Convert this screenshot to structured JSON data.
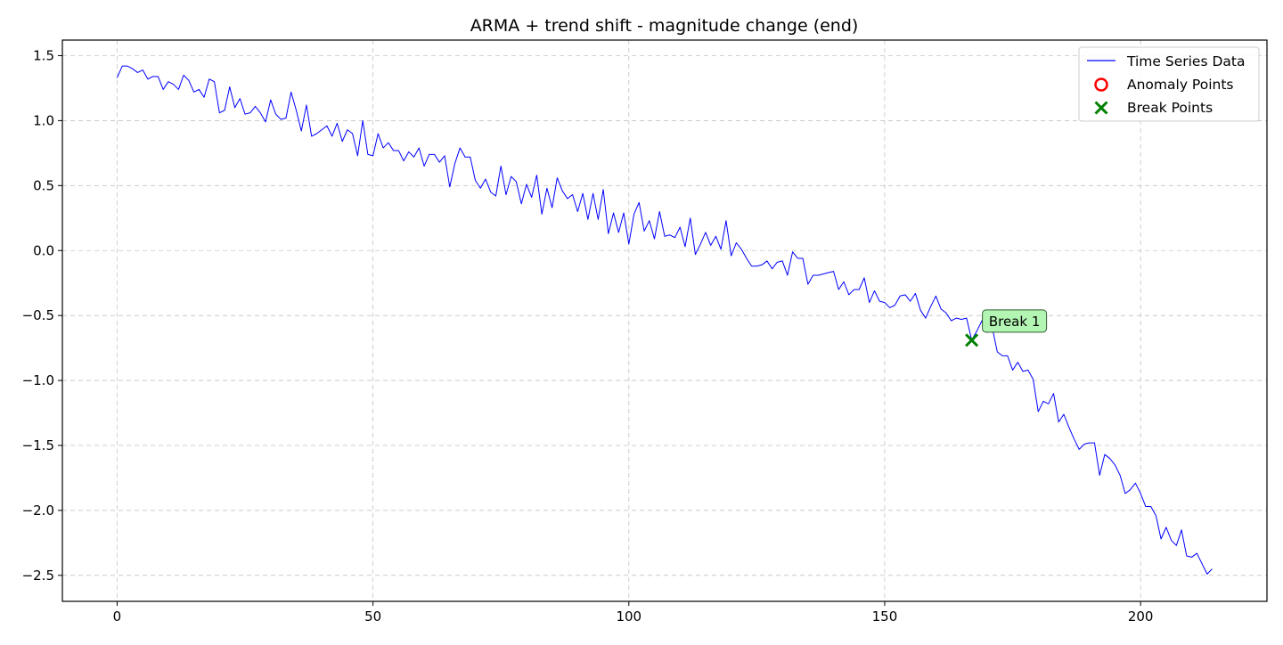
{
  "chart_data": {
    "type": "line",
    "title": "ARMA + trend shift - magnitude change (end)",
    "xlabel": "",
    "ylabel": "",
    "xlim": [
      -10.7,
      224.7
    ],
    "ylim": [
      -2.7,
      1.62
    ],
    "grid": true,
    "legend_position": "top-right",
    "x_ticks": [
      0,
      50,
      100,
      150,
      200
    ],
    "y_ticks": [
      -2.5,
      -2.0,
      -1.5,
      -1.0,
      -0.5,
      0.0,
      0.5,
      1.0,
      1.5
    ],
    "x_tick_labels": [
      "0",
      "50",
      "100",
      "150",
      "200"
    ],
    "y_tick_labels": [
      "−2.5",
      "−2.0",
      "−1.5",
      "−1.0",
      "−0.5",
      "0.0",
      "0.5",
      "1.0",
      "1.5"
    ],
    "series": [
      {
        "name": "Time Series Data",
        "color": "#0000ff",
        "x_start": 0,
        "values": [
          1.33,
          1.42,
          1.42,
          1.4,
          1.37,
          1.39,
          1.32,
          1.34,
          1.34,
          1.24,
          1.3,
          1.28,
          1.24,
          1.35,
          1.31,
          1.22,
          1.24,
          1.18,
          1.32,
          1.3,
          1.06,
          1.08,
          1.26,
          1.1,
          1.17,
          1.05,
          1.06,
          1.11,
          1.06,
          0.99,
          1.16,
          1.05,
          1.01,
          1.02,
          1.22,
          1.08,
          0.92,
          1.12,
          0.88,
          0.9,
          0.93,
          0.96,
          0.88,
          0.98,
          0.84,
          0.93,
          0.9,
          0.73,
          1.0,
          0.74,
          0.73,
          0.9,
          0.79,
          0.83,
          0.77,
          0.77,
          0.69,
          0.76,
          0.72,
          0.79,
          0.65,
          0.74,
          0.74,
          0.68,
          0.73,
          0.49,
          0.67,
          0.79,
          0.72,
          0.72,
          0.54,
          0.48,
          0.55,
          0.45,
          0.42,
          0.65,
          0.43,
          0.57,
          0.53,
          0.36,
          0.51,
          0.41,
          0.58,
          0.28,
          0.48,
          0.33,
          0.56,
          0.46,
          0.4,
          0.43,
          0.3,
          0.44,
          0.24,
          0.44,
          0.24,
          0.47,
          0.13,
          0.29,
          0.14,
          0.29,
          0.05,
          0.28,
          0.37,
          0.15,
          0.23,
          0.09,
          0.3,
          0.11,
          0.12,
          0.1,
          0.18,
          0.03,
          0.25,
          -0.03,
          0.05,
          0.14,
          0.04,
          0.11,
          0.01,
          0.23,
          -0.04,
          0.06,
          0.01,
          -0.06,
          -0.12,
          -0.12,
          -0.11,
          -0.08,
          -0.14,
          -0.09,
          -0.08,
          -0.19,
          -0.01,
          -0.06,
          -0.06,
          -0.26,
          -0.19,
          -0.19,
          -0.18,
          -0.17,
          -0.16,
          -0.3,
          -0.24,
          -0.34,
          -0.3,
          -0.3,
          -0.21,
          -0.4,
          -0.31,
          -0.39,
          -0.4,
          -0.44,
          -0.42,
          -0.35,
          -0.34,
          -0.39,
          -0.33,
          -0.46,
          -0.52,
          -0.43,
          -0.35,
          -0.45,
          -0.48,
          -0.54,
          -0.52,
          -0.53,
          -0.52,
          -0.69,
          -0.62,
          -0.54,
          -0.63,
          -0.59,
          -0.78,
          -0.81,
          -0.81,
          -0.92,
          -0.86,
          -0.93,
          -0.92,
          -0.99,
          -1.24,
          -1.16,
          -1.18,
          -1.1,
          -1.32,
          -1.26,
          -1.36,
          -1.45,
          -1.53,
          -1.49,
          -1.48,
          -1.48,
          -1.73,
          -1.57,
          -1.6,
          -1.65,
          -1.73,
          -1.87,
          -1.84,
          -1.79,
          -1.87,
          -1.97,
          -1.97,
          -2.04,
          -2.22,
          -2.13,
          -2.23,
          -2.27,
          -2.15,
          -2.35,
          -2.36,
          -2.33,
          -2.41,
          -2.49,
          -2.45
        ]
      }
    ],
    "anomaly_points": [],
    "break_points": [
      {
        "x": 167,
        "y": -0.69,
        "label": "Break 1",
        "color": "#008000"
      }
    ],
    "legend": [
      {
        "label": "Time Series Data",
        "kind": "line",
        "color": "#0000ff"
      },
      {
        "label": "Anomaly Points",
        "kind": "circle",
        "color": "#ff0000"
      },
      {
        "label": "Break Points",
        "kind": "x",
        "color": "#008000"
      }
    ]
  }
}
